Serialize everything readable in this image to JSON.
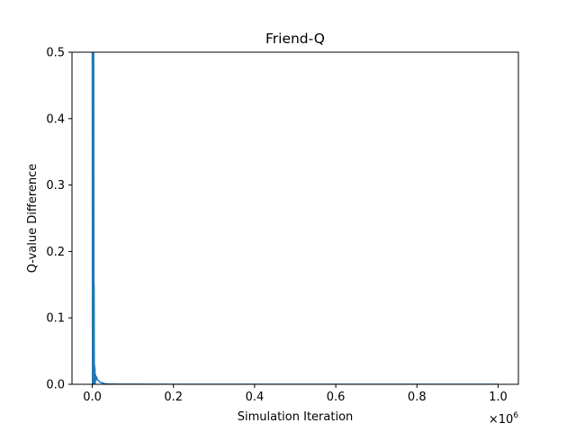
{
  "chart_data": {
    "type": "line",
    "title": "Friend-Q",
    "xlabel": "Simulation Iteration",
    "ylabel": "Q-value Difference",
    "x_offset_label": "×10",
    "x_offset_exp": "6",
    "xlim": [
      -50000,
      1050000
    ],
    "ylim": [
      0,
      0.5
    ],
    "xticks": [
      0,
      200000,
      400000,
      600000,
      800000,
      1000000
    ],
    "xtick_labels": [
      "0.0",
      "0.2",
      "0.4",
      "0.6",
      "0.8",
      "1.0"
    ],
    "yticks": [
      0,
      0.1,
      0.2,
      0.3,
      0.4,
      0.5
    ],
    "ytick_labels": [
      "0.0",
      "0.1",
      "0.2",
      "0.3",
      "0.4",
      "0.5"
    ],
    "grid": false,
    "series": [
      {
        "color": "#1f77b4",
        "x": [
          0,
          500,
          800,
          1000,
          1500,
          2000,
          2500,
          3000,
          3500,
          4000,
          4500,
          5000,
          5500,
          6000,
          6500,
          7000,
          8000,
          9000,
          10000,
          12000,
          14000,
          16000,
          20000,
          25000,
          30000,
          40000,
          60000,
          100000,
          200000,
          400000,
          600000,
          800000,
          1000000
        ],
        "y": [
          0.5,
          0.0,
          0.5,
          0.02,
          0.5,
          0.05,
          0.5,
          0.0,
          0.5,
          0.02,
          0.15,
          0.0,
          0.03,
          0.01,
          0.025,
          0.0,
          0.015,
          0.005,
          0.012,
          0.008,
          0.006,
          0.005,
          0.003,
          0.002,
          0.001,
          0.0005,
          0.0002,
          0.0001,
          0.0,
          0.0,
          0.0,
          0.0,
          0.0
        ]
      }
    ]
  }
}
